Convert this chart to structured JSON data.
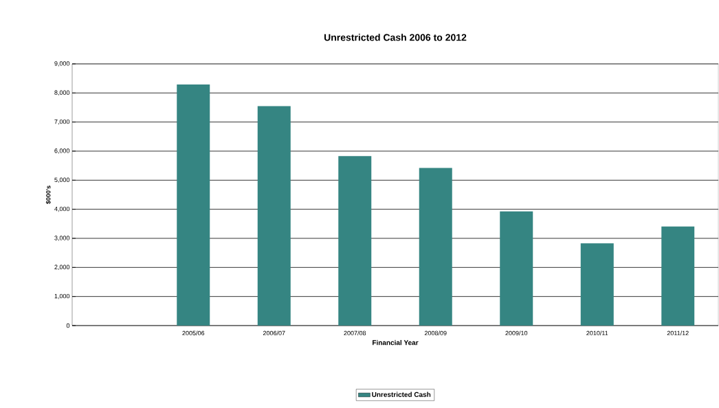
{
  "chart_data": {
    "type": "bar",
    "title": "Unrestricted Cash 2006 to 2012",
    "xlabel": "Financial Year",
    "ylabel": "$000's",
    "categories": [
      null,
      "2005/06",
      "2006/07",
      "2007/08",
      "2008/09",
      "2009/10",
      "2010/11",
      "2011/12"
    ],
    "series": [
      {
        "name": "Unrestricted Cash",
        "color": "#358582",
        "values": [
          null,
          8290,
          7550,
          5830,
          5420,
          3930,
          2830,
          3410
        ]
      }
    ],
    "ylim": [
      0,
      9000
    ],
    "yticks": [
      {
        "value": 0,
        "label": "0"
      },
      {
        "value": 1000,
        "label": "1,000"
      },
      {
        "value": 2000,
        "label": "2,000"
      },
      {
        "value": 3000,
        "label": "3,000"
      },
      {
        "value": 4000,
        "label": "4,000"
      },
      {
        "value": 5000,
        "label": "5,000"
      },
      {
        "value": 6000,
        "label": "6,000"
      },
      {
        "value": 7000,
        "label": "7,000"
      },
      {
        "value": 8000,
        "label": "8,000"
      },
      {
        "value": 9000,
        "label": "9,000"
      }
    ],
    "grid": "y",
    "legend": "bottom"
  }
}
